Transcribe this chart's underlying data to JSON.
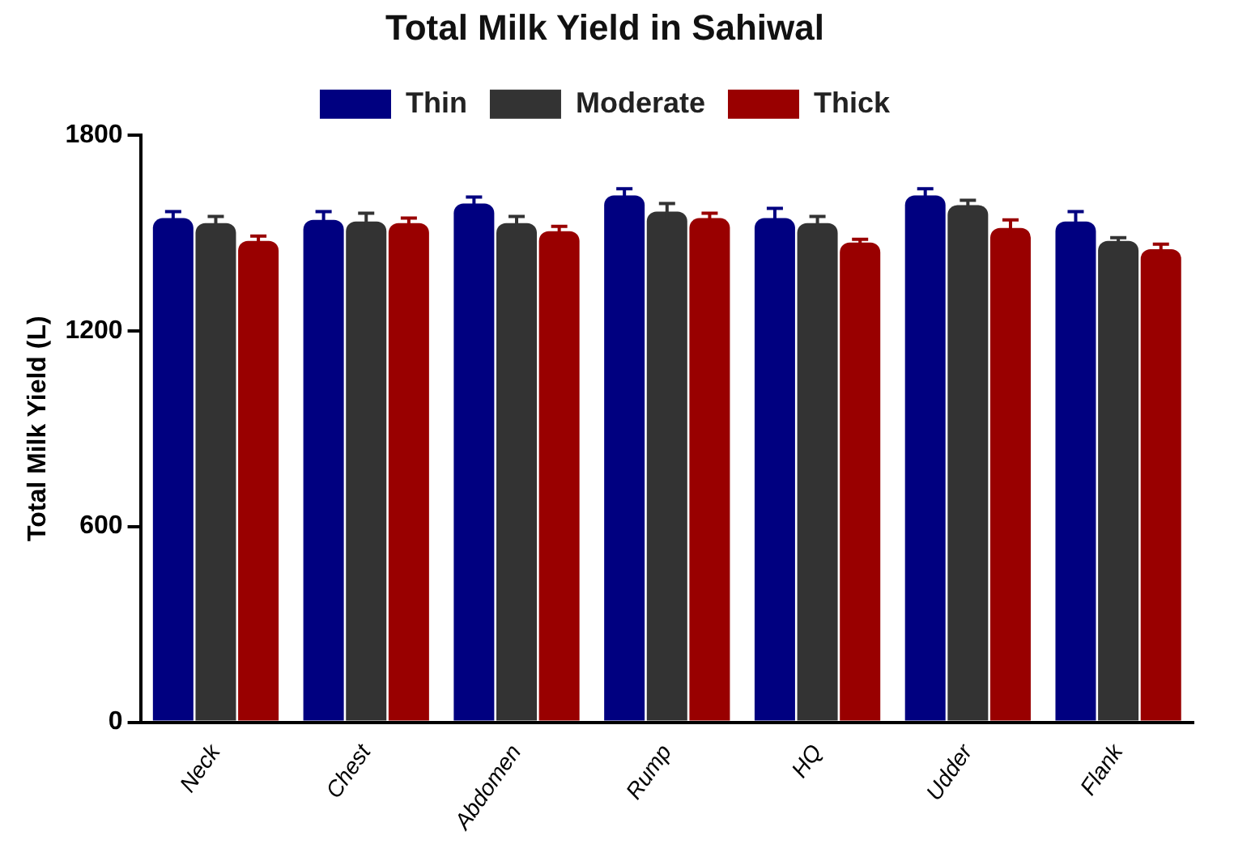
{
  "chart_data": {
    "type": "bar",
    "title": "Total Milk Yield in Sahiwal",
    "ylabel": "Total Milk Yield (L)",
    "categories": [
      "Neck",
      "Chest",
      "Abdomen",
      "Rump",
      "HQ",
      "Udder",
      "Flank"
    ],
    "series": [
      {
        "name": "Thin",
        "color": "#000080",
        "values": [
          1545,
          1540,
          1590,
          1615,
          1545,
          1615,
          1535
        ],
        "errors": [
          20,
          25,
          20,
          20,
          30,
          20,
          30
        ]
      },
      {
        "name": "Moderate",
        "color": "#333333",
        "values": [
          1530,
          1535,
          1530,
          1565,
          1530,
          1585,
          1475
        ],
        "errors": [
          20,
          25,
          20,
          25,
          20,
          15,
          10
        ]
      },
      {
        "name": "Thick",
        "color": "#990000",
        "values": [
          1475,
          1530,
          1505,
          1545,
          1470,
          1515,
          1450
        ],
        "errors": [
          15,
          15,
          15,
          15,
          10,
          25,
          15
        ]
      }
    ],
    "ylim": [
      0,
      1800
    ],
    "yticks": [
      0,
      600,
      1200,
      1800
    ],
    "grid": false,
    "legend": "top"
  }
}
